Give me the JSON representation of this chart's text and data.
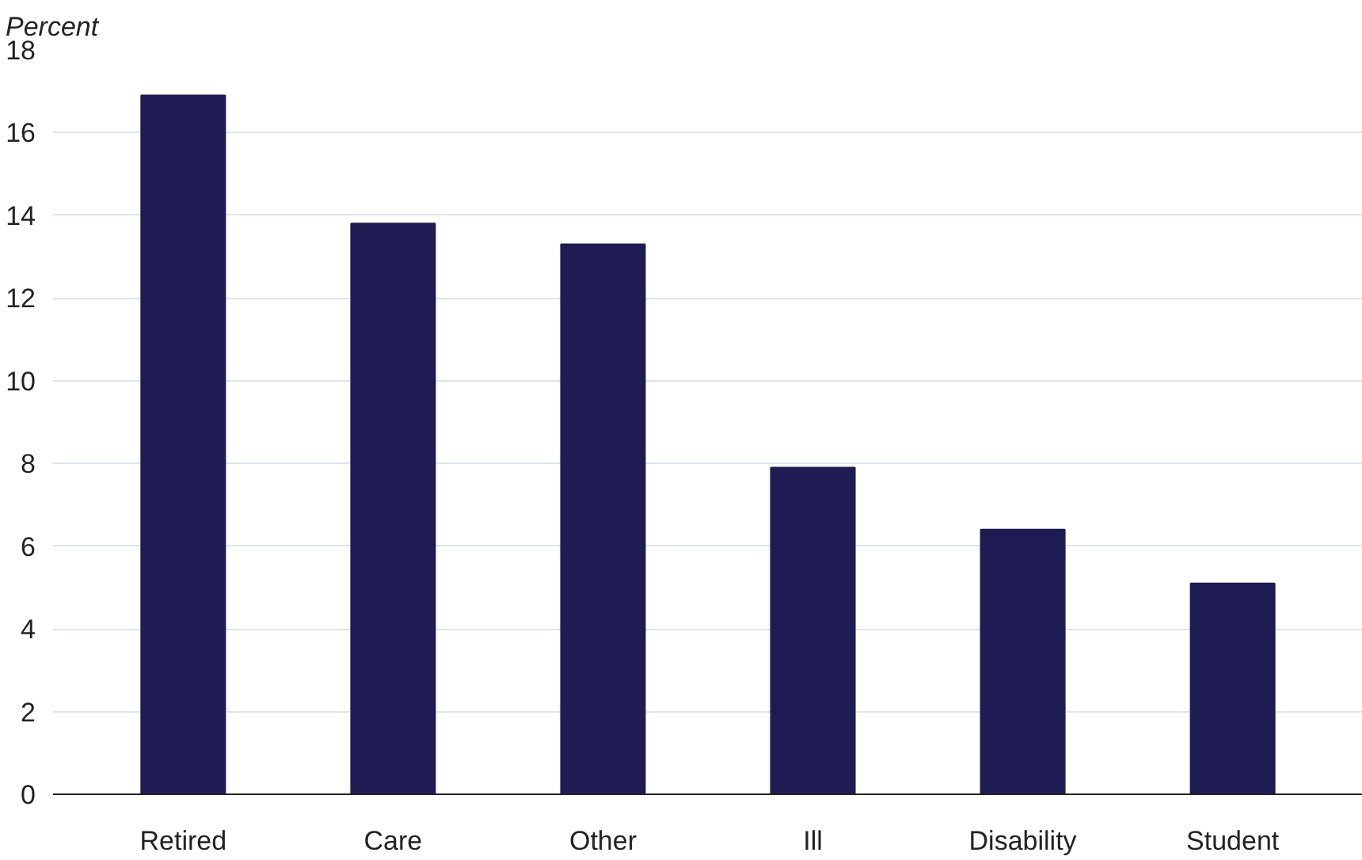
{
  "chart_data": {
    "type": "bar",
    "ylabel": "Percent",
    "categories": [
      "Retired",
      "Care",
      "Other",
      "Ill",
      "Disability",
      "Student"
    ],
    "values": [
      16.9,
      13.8,
      13.3,
      7.9,
      6.4,
      5.1
    ],
    "color": "#1f1b53",
    "ylim": [
      0,
      18
    ],
    "yticks": [
      0,
      2,
      4,
      6,
      8,
      10,
      12,
      14,
      16,
      18
    ],
    "grid": "y"
  }
}
